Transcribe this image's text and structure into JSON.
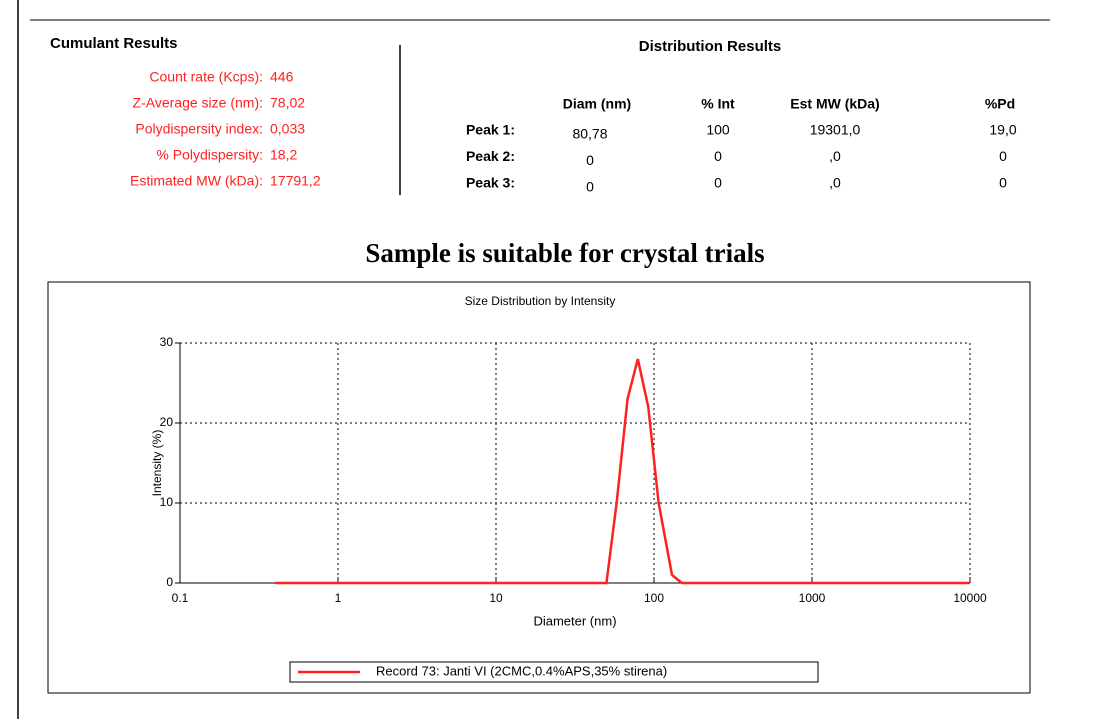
{
  "cumulant": {
    "title": "Cumulant Results",
    "rows": [
      {
        "label": "Count rate (Kcps):",
        "value": "446"
      },
      {
        "label": "Z-Average size (nm):",
        "value": "78,02"
      },
      {
        "label": "Polydispersity index:",
        "value": "0,033"
      },
      {
        "label": "% Polydispersity:",
        "value": "18,2"
      },
      {
        "label": "Estimated MW (kDa):",
        "value": "17791,2"
      }
    ]
  },
  "distribution": {
    "title": "Distribution Results",
    "columns": [
      "Diam (nm)",
      "% Int",
      "Est MW (kDa)",
      "%Pd"
    ],
    "rows": [
      {
        "label": "Peak 1:",
        "cells": [
          "80,78",
          "100",
          "19301,0",
          "19,0"
        ]
      },
      {
        "label": "Peak 2:",
        "cells": [
          "0",
          "0",
          ",0",
          "0"
        ]
      },
      {
        "label": "Peak 3:",
        "cells": [
          "0",
          "0",
          ",0",
          "0"
        ]
      }
    ]
  },
  "verdict": "Sample is suitable for crystal trials",
  "chart_data": {
    "type": "line",
    "title": "Size Distribution by Intensity",
    "x_label": "Diameter (nm)",
    "y_label": "Intensity (%)",
    "x_scale": "log",
    "grid": true,
    "legend": "bottom",
    "xlim": [
      0.1,
      10000
    ],
    "xticks": [
      0.1,
      1,
      10,
      100,
      1000,
      10000
    ],
    "ylim": [
      0,
      30
    ],
    "yticks": [
      0,
      10,
      20,
      30
    ],
    "series": [
      {
        "name": "Record 73: Janti VI (2CMC,0.4%APS,35% stirena)",
        "color": "#ff2020",
        "x": [
          0.4,
          50,
          58,
          68,
          79,
          92,
          107,
          130,
          150,
          10000
        ],
        "values": [
          0,
          0,
          10,
          23,
          28,
          22,
          10,
          1,
          0,
          0
        ]
      }
    ]
  }
}
